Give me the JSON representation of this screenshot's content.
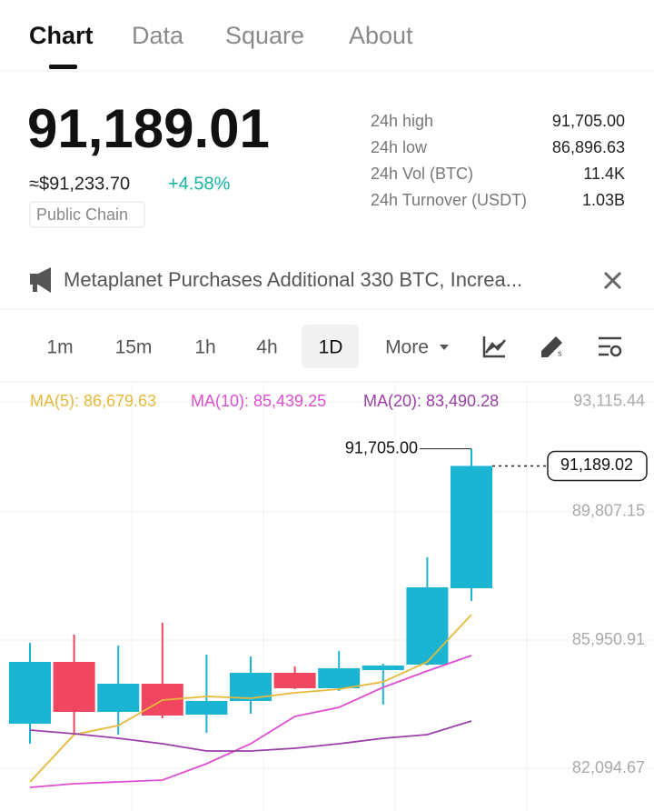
{
  "tabs": [
    "Chart",
    "Data",
    "Square",
    "About"
  ],
  "price": {
    "last": "91,189.01",
    "approx": "≈$91,233.70",
    "change": "+4.58%",
    "tag": "Public Chain"
  },
  "stats": [
    [
      "24h high",
      "91,705.00"
    ],
    [
      "24h low",
      "86,896.63"
    ],
    [
      "24h Vol (BTC)",
      "11.4K"
    ],
    [
      "24h Turnover (USDT)",
      "1.03B"
    ]
  ],
  "news": "Metaplanet Purchases Additional 330 BTC, Increa...",
  "intervals": [
    "1m",
    "15m",
    "1h",
    "4h",
    "1D",
    "More"
  ],
  "chart_data": {
    "type": "candlestick",
    "categories": [
      null,
      null,
      null,
      null,
      null,
      null,
      null,
      null,
      null,
      null,
      null
    ],
    "open": [
      83437,
      85296,
      83792,
      84640,
      83710,
      84120,
      84968,
      84503,
      85050,
      85214,
      87510
    ],
    "high": [
      85870,
      86116,
      85788,
      86471,
      85514,
      85460,
      85159,
      85624,
      85241,
      88440,
      91705
    ],
    "low": [
      82835,
      83109,
      83109,
      83601,
      83163,
      83737,
      84476,
      84421,
      84011,
      85186,
      87128
    ],
    "close": [
      85296,
      83792,
      84640,
      83683,
      84120,
      84968,
      84503,
      85104,
      85186,
      87538,
      91189.02
    ],
    "up_color": "#1bb5d3",
    "down_color": "#f14660",
    "ma_lines": [
      {
        "name": "MA(5): 86,679.63",
        "color": "#e5b93a",
        "values": [
          81687,
          83109,
          83382,
          84147,
          84257,
          84202,
          84366,
          84476,
          84694,
          85296,
          86717
        ]
      },
      {
        "name": "MA(10): 85,439.25",
        "color": "#dd4fd0",
        "values": [
          81523,
          81632,
          81687,
          81742,
          82234,
          82835,
          83655,
          83929,
          84530,
          85022,
          85487
        ]
      },
      {
        "name": "MA(20): 83,490.28",
        "color": "#9b3fa6",
        "values": [
          83245,
          83136,
          82999,
          82835,
          82616,
          82616,
          82698,
          82835,
          82999,
          83109,
          83519
        ]
      }
    ],
    "max_marker": {
      "value": 91705,
      "label": "91,705.00"
    },
    "last_price": {
      "value": 91189.02,
      "label": "91,189.02"
    },
    "ylim": [
      80812,
      93662
    ],
    "yticks": [
      {
        "value": 93115.44,
        "label": "93,115.44"
      },
      {
        "value": 89807.15,
        "label": "89,807.15"
      },
      {
        "value": 85950.91,
        "label": "85,950.91"
      },
      {
        "value": 82094.67,
        "label": "82,094.67"
      }
    ],
    "grid": true
  }
}
